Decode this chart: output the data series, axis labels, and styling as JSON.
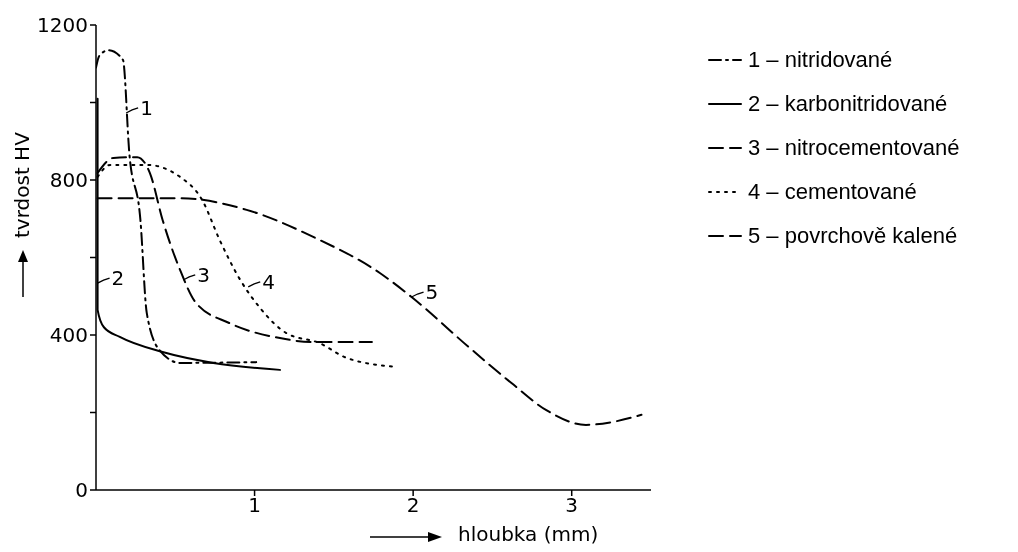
{
  "chart_data": {
    "type": "line",
    "xlabel": "hloubka (mm)",
    "ylabel": "tvrdost HV",
    "xlim": [
      0,
      3.5
    ],
    "ylim": [
      0,
      1200
    ],
    "xticks": [
      1,
      2,
      3
    ],
    "yticks": [
      0,
      {
        "value": 200,
        "label": null
      },
      400,
      {
        "value": 600,
        "label": null
      },
      800,
      {
        "value": 1000,
        "label": null
      },
      1200
    ],
    "grid": false,
    "legend": "right",
    "marker": "none",
    "series": [
      {
        "name": "1 – nitridované",
        "color": "#000000",
        "line_style": "dashdot",
        "x": [
          0.0,
          0.02,
          0.08,
          0.17,
          0.21,
          0.28,
          0.32,
          0.4,
          0.53,
          1.01
        ],
        "values": [
          1090,
          1120,
          1135,
          1110,
          870,
          697,
          457,
          361,
          328,
          330
        ]
      },
      {
        "name": "2 – karbonitridované",
        "color": "#000000",
        "line_style": "solid",
        "x": [
          0.01,
          0.01,
          0.05,
          0.15,
          0.42,
          0.74,
          1.16
        ],
        "values": [
          1010,
          465,
          420,
          395,
          356,
          328,
          310
        ]
      },
      {
        "name": "3 – nitrocementované",
        "color": "#000000",
        "line_style": "dashed",
        "x": [
          0.01,
          0.11,
          0.26,
          0.34,
          0.42,
          0.53,
          0.63,
          0.84,
          1.16,
          1.36,
          1.74
        ],
        "values": [
          818,
          857,
          859,
          818,
          697,
          568,
          483,
          431,
          392,
          382,
          382
        ]
      },
      {
        "name": "4 – cementované",
        "color": "#000000",
        "line_style": "dotted",
        "x": [
          0.01,
          0.09,
          0.32,
          0.53,
          0.67,
          0.78,
          0.91,
          1.03,
          1.2,
          1.41,
          1.58,
          1.89
        ],
        "values": [
          808,
          839,
          839,
          808,
          748,
          645,
          542,
          472,
          405,
          379,
          341,
          318
        ]
      },
      {
        "name": "5 – povrchově kalené",
        "color": "#000000",
        "line_style": "dashed",
        "x": [
          0.01,
          0.53,
          0.95,
          1.37,
          1.79,
          1.99,
          2.35,
          2.62,
          2.84,
          3.09,
          3.25,
          3.44
        ],
        "values": [
          753,
          753,
          723,
          653,
          560,
          498,
          369,
          276,
          206,
          168,
          175,
          194
        ]
      }
    ],
    "annotations": [
      {
        "text": "1",
        "x": 0.19,
        "y": 973
      },
      {
        "text": "2",
        "x": 0.01,
        "y": 534
      },
      {
        "text": "3",
        "x": 0.55,
        "y": 542
      },
      {
        "text": "4",
        "x": 0.96,
        "y": 524
      },
      {
        "text": "5",
        "x": 1.99,
        "y": 498
      }
    ]
  }
}
